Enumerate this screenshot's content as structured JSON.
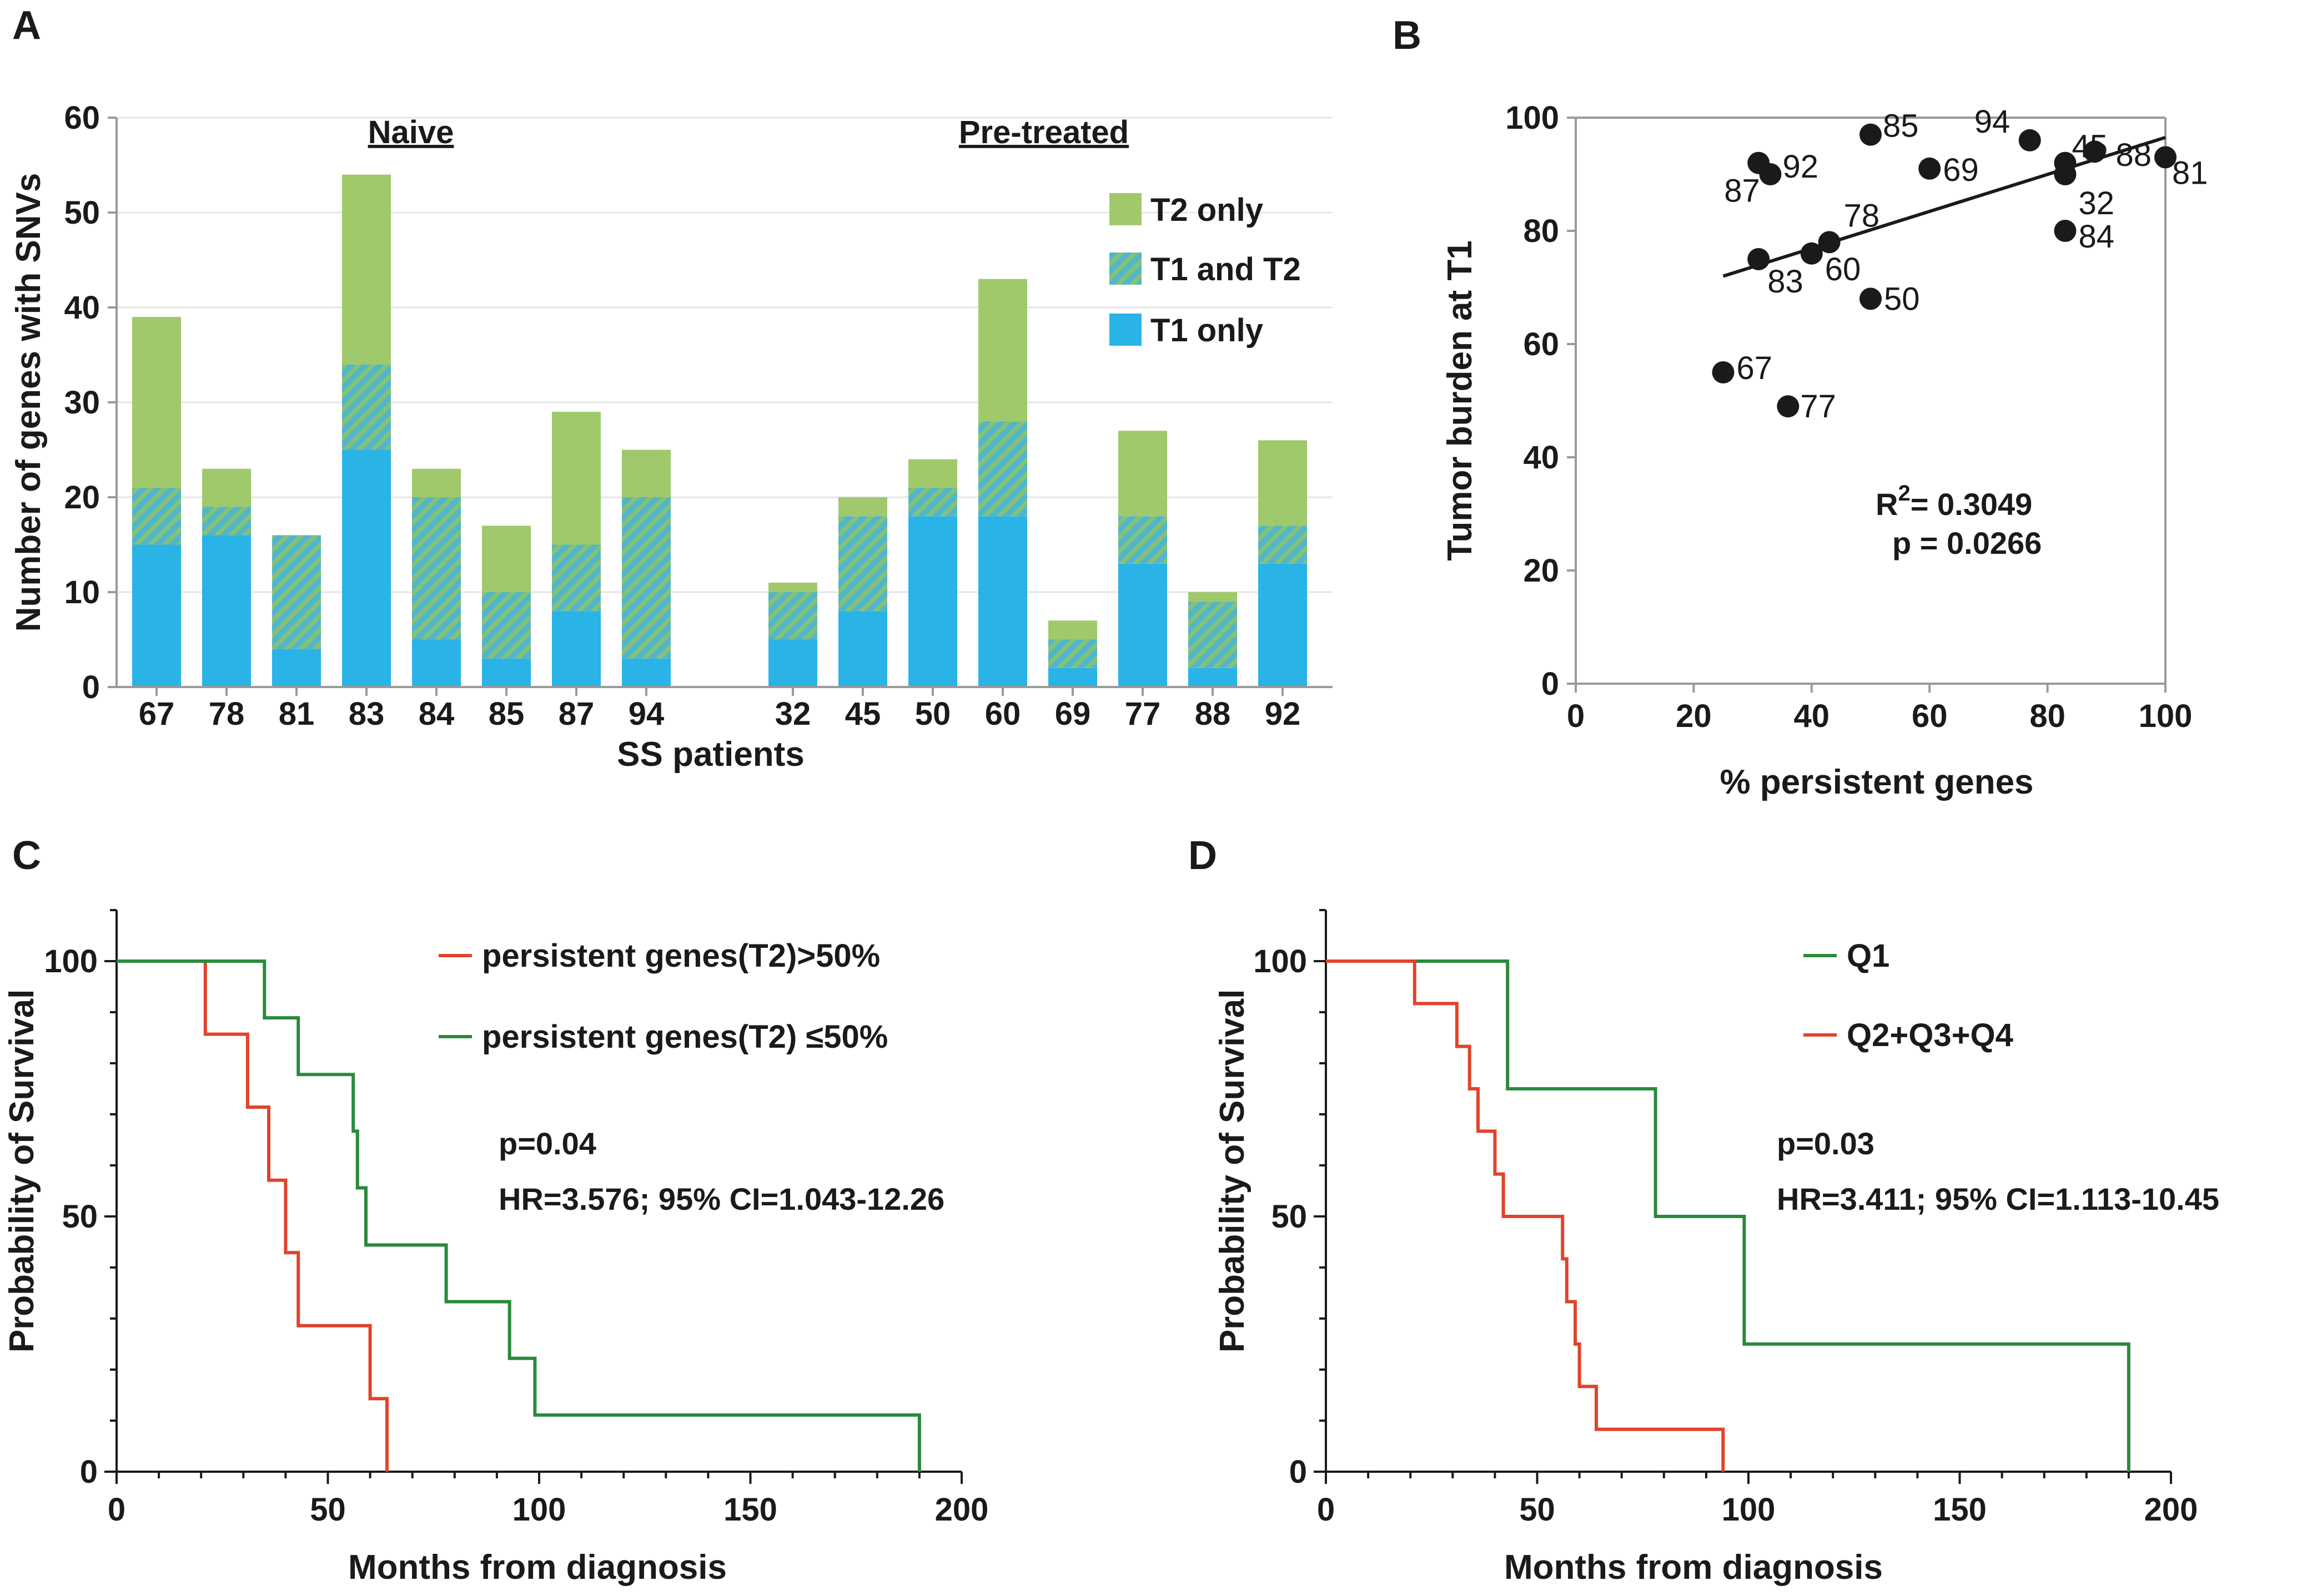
{
  "colors": {
    "t2_only": "#9fc96b",
    "t1_only": "#2ab3e6",
    "t1t2_base": "#4fb7c9",
    "t1t2_stripe": "#86c07a",
    "red": "#e0442a",
    "green": "#2a8a3c",
    "text": "#1a1a1a",
    "axis": "#9a9a9a"
  },
  "panels": {
    "a": {
      "letter": "A"
    },
    "b": {
      "letter": "B"
    },
    "c": {
      "letter": "C"
    },
    "d": {
      "letter": "D"
    }
  },
  "chart_data": [
    {
      "panel": "A",
      "type": "bar",
      "stacked": true,
      "ylabel": "Number of genes with SNVs",
      "xlabel": "SS patients",
      "ylim": [
        0,
        60
      ],
      "yticks": [
        0,
        10,
        20,
        30,
        40,
        50,
        60
      ],
      "groups": [
        {
          "label": "Naive",
          "categories": [
            "67",
            "78",
            "81",
            "83",
            "84",
            "85",
            "87",
            "94"
          ]
        },
        {
          "label": "Pre-treated",
          "categories": [
            "32",
            "45",
            "50",
            "60",
            "69",
            "77",
            "88",
            "92"
          ]
        }
      ],
      "categories": [
        "67",
        "78",
        "81",
        "83",
        "84",
        "85",
        "87",
        "94",
        "32",
        "45",
        "50",
        "60",
        "69",
        "77",
        "88",
        "92"
      ],
      "legend": [
        "T2 only",
        "T1 and T2",
        "T1 only"
      ],
      "series": [
        {
          "name": "T1 only",
          "values": [
            15,
            16,
            4,
            25,
            5,
            3,
            8,
            3,
            5,
            8,
            18,
            18,
            2,
            13,
            2,
            13
          ]
        },
        {
          "name": "T1 and T2",
          "values": [
            6,
            3,
            12,
            9,
            15,
            7,
            7,
            17,
            5,
            10,
            3,
            10,
            3,
            5,
            7,
            4
          ]
        },
        {
          "name": "T2 only",
          "values": [
            18,
            4,
            0,
            20,
            3,
            7,
            14,
            5,
            1,
            2,
            3,
            15,
            2,
            9,
            1,
            9
          ]
        }
      ]
    },
    {
      "panel": "B",
      "type": "scatter",
      "xlabel": "% persistent genes",
      "ylabel": "Tumor burden at T1",
      "xlim": [
        0,
        100
      ],
      "ylim": [
        0,
        100
      ],
      "xticks": [
        0,
        20,
        40,
        60,
        80,
        100
      ],
      "yticks": [
        0,
        20,
        40,
        60,
        80,
        100
      ],
      "points": [
        {
          "label": "92",
          "x": 33,
          "y": 90
        },
        {
          "label": "87",
          "x": 31,
          "y": 92
        },
        {
          "label": "85",
          "x": 50,
          "y": 97
        },
        {
          "label": "94",
          "x": 77,
          "y": 96
        },
        {
          "label": "45",
          "x": 83,
          "y": 92
        },
        {
          "label": "69",
          "x": 60,
          "y": 91
        },
        {
          "label": "88",
          "x": 88,
          "y": 94
        },
        {
          "label": "81",
          "x": 100,
          "y": 93
        },
        {
          "label": "32",
          "x": 83,
          "y": 90
        },
        {
          "label": "78",
          "x": 43,
          "y": 78
        },
        {
          "label": "84",
          "x": 83,
          "y": 80
        },
        {
          "label": "83",
          "x": 31,
          "y": 75
        },
        {
          "label": "60",
          "x": 40,
          "y": 76
        },
        {
          "label": "50",
          "x": 50,
          "y": 68
        },
        {
          "label": "67",
          "x": 25,
          "y": 55
        },
        {
          "label": "77",
          "x": 36,
          "y": 49
        }
      ],
      "regression": {
        "x": [
          25,
          100
        ],
        "y": [
          72,
          96.5
        ]
      },
      "stats": {
        "r2_label": "R",
        "r2_sup": "2",
        "r2_value": "= 0.3049",
        "p_text": "p = 0.0266"
      }
    },
    {
      "panel": "C",
      "type": "line",
      "subtype": "kaplan-meier step",
      "xlabel": "Months from diagnosis",
      "ylabel": "Probability of Survival",
      "xlim": [
        0,
        200
      ],
      "ylim": [
        0,
        110
      ],
      "xticks": [
        0,
        50,
        100,
        150,
        200
      ],
      "yticks": [
        0,
        50,
        100
      ],
      "series": [
        {
          "name": "persistent genes(T2)>50%",
          "color": "red",
          "steps": [
            [
              0,
              100
            ],
            [
              21,
              100
            ],
            [
              21,
              85.7
            ],
            [
              31,
              85.7
            ],
            [
              31,
              71.4
            ],
            [
              36,
              71.4
            ],
            [
              36,
              57.1
            ],
            [
              40,
              57.1
            ],
            [
              40,
              42.9
            ],
            [
              43,
              42.9
            ],
            [
              43,
              28.6
            ],
            [
              60,
              28.6
            ],
            [
              60,
              14.3
            ],
            [
              64,
              14.3
            ],
            [
              64,
              0
            ]
          ]
        },
        {
          "name": "persistent genes(T2) ≤50%",
          "color": "green",
          "steps": [
            [
              0,
              100
            ],
            [
              35,
              100
            ],
            [
              35,
              88.9
            ],
            [
              43,
              88.9
            ],
            [
              43,
              77.8
            ],
            [
              56,
              77.8
            ],
            [
              56,
              66.7
            ],
            [
              57,
              66.7
            ],
            [
              57,
              55.6
            ],
            [
              59,
              55.6
            ],
            [
              59,
              44.4
            ],
            [
              78,
              44.4
            ],
            [
              78,
              33.3
            ],
            [
              93,
              33.3
            ],
            [
              93,
              22.2
            ],
            [
              99,
              22.2
            ],
            [
              99,
              11.1
            ],
            [
              190,
              11.1
            ],
            [
              190,
              0
            ]
          ]
        }
      ],
      "annotations": [
        "p=0.04",
        "HR=3.576; 95% CI=1.043-12.26"
      ]
    },
    {
      "panel": "D",
      "type": "line",
      "subtype": "kaplan-meier step",
      "xlabel": "Months from diagnosis",
      "ylabel": "Probability of Survival",
      "xlim": [
        0,
        200
      ],
      "ylim": [
        0,
        110
      ],
      "xticks": [
        0,
        50,
        100,
        150,
        200
      ],
      "yticks": [
        0,
        50,
        100
      ],
      "series": [
        {
          "name": "Q1",
          "color": "green",
          "steps": [
            [
              0,
              100
            ],
            [
              43,
              100
            ],
            [
              43,
              75
            ],
            [
              78,
              75
            ],
            [
              78,
              50
            ],
            [
              99,
              50
            ],
            [
              99,
              25
            ],
            [
              190,
              25
            ],
            [
              190,
              0
            ]
          ]
        },
        {
          "name": "Q2+Q3+Q4",
          "color": "red",
          "steps": [
            [
              0,
              100
            ],
            [
              21,
              100
            ],
            [
              21,
              91.7
            ],
            [
              31,
              91.7
            ],
            [
              31,
              83.3
            ],
            [
              34,
              83.3
            ],
            [
              34,
              75
            ],
            [
              36,
              75
            ],
            [
              36,
              66.7
            ],
            [
              40,
              66.7
            ],
            [
              40,
              58.3
            ],
            [
              42,
              58.3
            ],
            [
              42,
              50
            ],
            [
              56,
              50
            ],
            [
              56,
              41.7
            ],
            [
              57,
              41.7
            ],
            [
              57,
              33.3
            ],
            [
              59,
              33.3
            ],
            [
              59,
              25
            ],
            [
              60,
              25
            ],
            [
              60,
              16.7
            ],
            [
              64,
              16.7
            ],
            [
              64,
              8.3
            ],
            [
              94,
              8.3
            ],
            [
              94,
              0
            ]
          ]
        }
      ],
      "annotations": [
        "p=0.03",
        "HR=3.411; 95% CI=1.113-10.45"
      ]
    }
  ]
}
